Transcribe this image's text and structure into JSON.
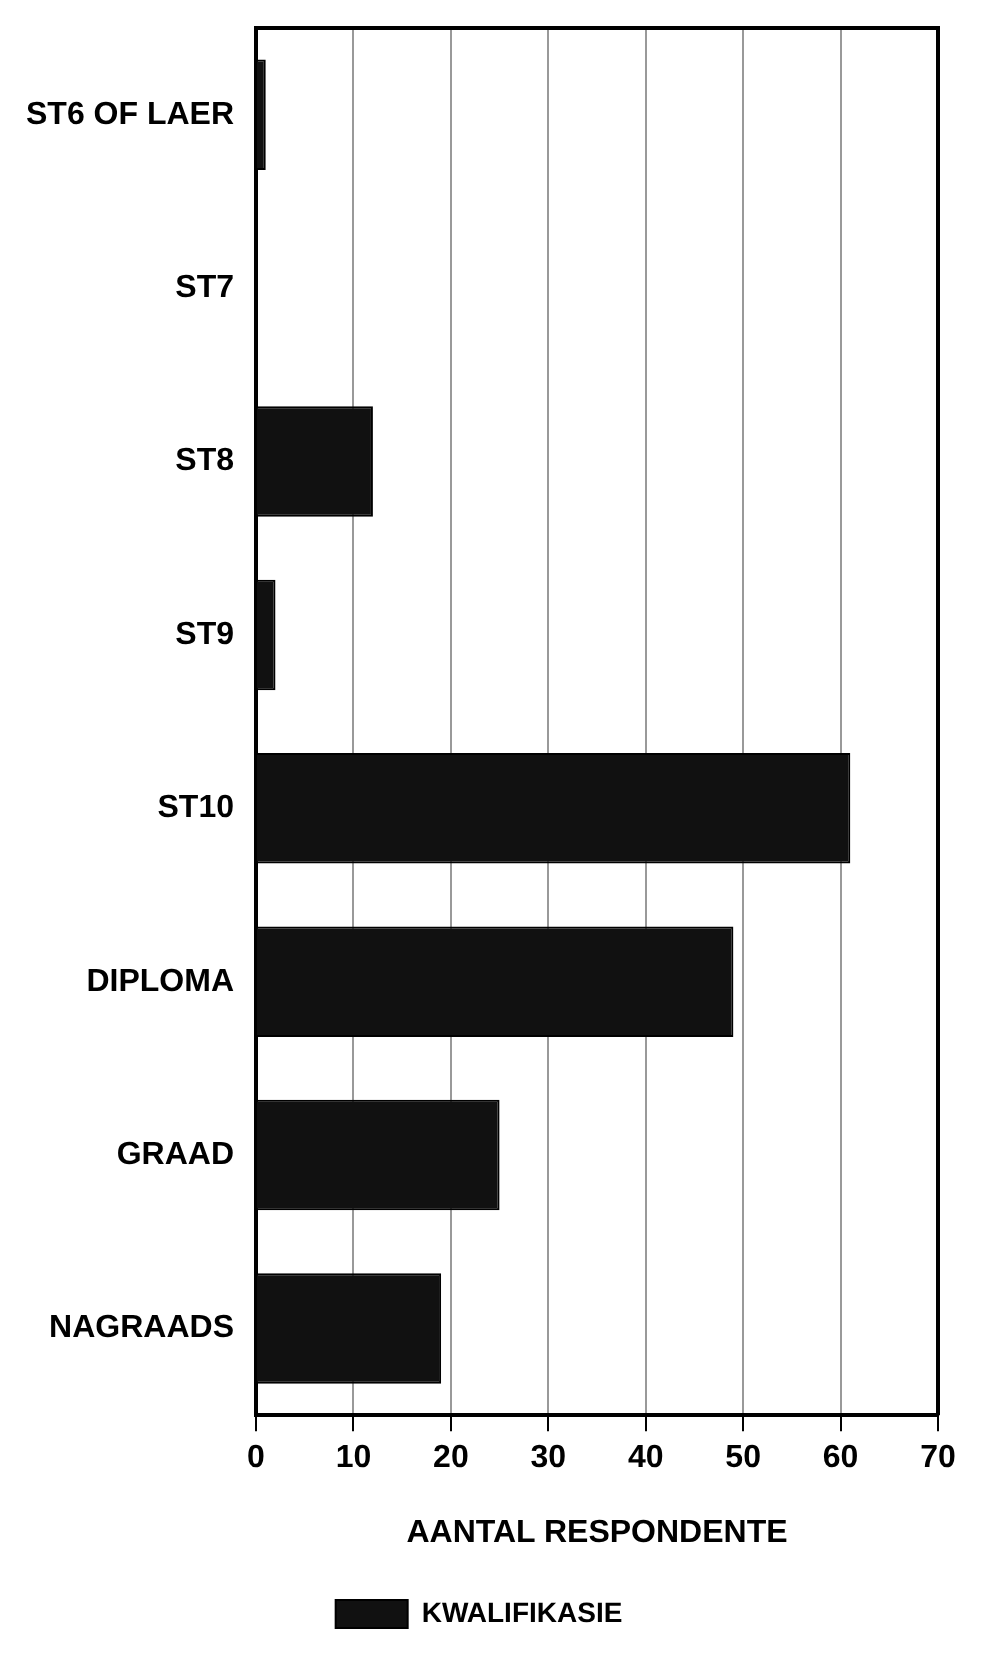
{
  "chart_data": {
    "type": "bar",
    "orientation": "horizontal",
    "xlabel": "AANTAL RESPONDENTE",
    "categories": [
      "ST6 OF LAER",
      "ST7",
      "ST8",
      "ST9",
      "ST10",
      "DIPLOMA",
      "GRAAD",
      "NAGRAADS"
    ],
    "series": [
      {
        "name": "KWALIFIKASIE",
        "color": "#111111",
        "values": [
          1,
          0,
          12,
          2,
          61,
          49,
          25,
          19
        ]
      }
    ],
    "xlim": [
      0,
      70
    ],
    "xticks": [
      0,
      10,
      20,
      30,
      40,
      50,
      60,
      70
    ],
    "grid": "x",
    "legend": "bottom"
  }
}
